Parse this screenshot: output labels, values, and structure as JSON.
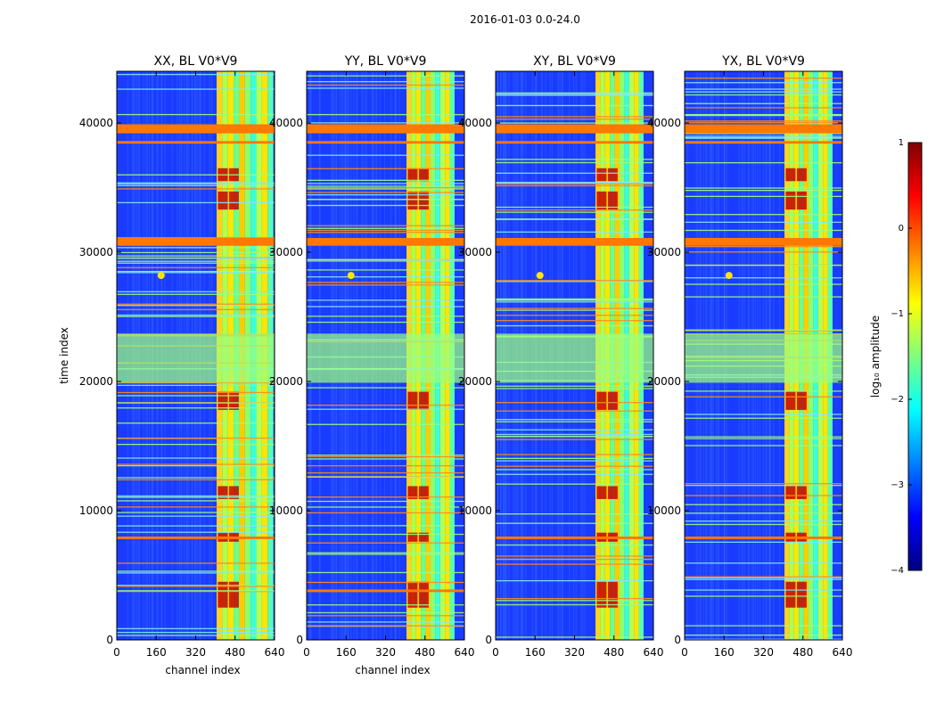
{
  "figure": {
    "suptitle": "2016-01-03 0.0-24.0"
  },
  "chart_data": [
    {
      "type": "heatmap",
      "title": "XX, BL V0*V9",
      "xlabel": "channel index",
      "ylabel": "time index",
      "xlim": [
        0,
        640
      ],
      "ylim": [
        0,
        44000
      ],
      "xticks": [
        "0",
        "160",
        "320",
        "480",
        "640"
      ],
      "yticks": [
        "0",
        "10000",
        "20000",
        "30000",
        "40000"
      ],
      "bright_channel_range": [
        405,
        635
      ],
      "flagged_time_bands": [
        [
          39200,
          39900
        ],
        [
          30500,
          31100
        ],
        [
          29900,
          30300
        ],
        [
          33500,
          33800
        ],
        [
          7800,
          8000
        ],
        [
          22000,
          23700
        ]
      ]
    },
    {
      "type": "heatmap",
      "title": "YY, BL V0*V9",
      "xlabel": "channel index",
      "ylabel": "",
      "xlim": [
        0,
        640
      ],
      "ylim": [
        0,
        44000
      ],
      "xticks": [
        "0",
        "160",
        "320",
        "480",
        "640"
      ],
      "yticks": [
        "0",
        "10000",
        "20000",
        "30000",
        "40000"
      ],
      "bright_channel_range": [
        405,
        600
      ],
      "flagged_time_bands": [
        [
          39200,
          39900
        ],
        [
          30500,
          31100
        ],
        [
          29900,
          30300
        ],
        [
          33500,
          33800
        ],
        [
          3700,
          3900
        ],
        [
          22000,
          23700
        ]
      ]
    },
    {
      "type": "heatmap",
      "title": "XY, BL V0*V9",
      "xlabel": "",
      "ylabel": "",
      "xlim": [
        0,
        640
      ],
      "ylim": [
        0,
        44000
      ],
      "xticks": [
        "0",
        "160",
        "320",
        "480",
        "640"
      ],
      "yticks": [
        "0",
        "10000",
        "20000",
        "30000",
        "40000"
      ],
      "bright_channel_range": [
        405,
        600
      ],
      "flagged_time_bands": [
        [
          39200,
          39900
        ],
        [
          30500,
          31100
        ],
        [
          29900,
          30300
        ],
        [
          33500,
          33800
        ],
        [
          7800,
          8000
        ],
        [
          22000,
          23700
        ]
      ]
    },
    {
      "type": "heatmap",
      "title": "YX, BL V0*V9",
      "xlabel": "",
      "ylabel": "",
      "xlim": [
        0,
        640
      ],
      "ylim": [
        0,
        44000
      ],
      "xticks": [
        "0",
        "160",
        "320",
        "480",
        "640"
      ],
      "yticks": [
        "0",
        "10000",
        "20000",
        "30000",
        "40000"
      ],
      "bright_channel_range": [
        405,
        600
      ],
      "flagged_time_bands": [
        [
          39200,
          39900
        ],
        [
          30500,
          31100
        ],
        [
          29900,
          30300
        ],
        [
          33500,
          33800
        ],
        [
          7800,
          8000
        ],
        [
          22000,
          23700
        ]
      ]
    }
  ],
  "colorbar": {
    "label": "log₁₀ amplitude",
    "vmin": -4,
    "vmax": 1,
    "ticks": [
      "1",
      "0",
      "−1",
      "−2",
      "−3",
      "−4"
    ],
    "colormap": [
      "#00007f",
      "#0000ff",
      "#007fff",
      "#00ffff",
      "#7fff7f",
      "#ffff00",
      "#ff7f00",
      "#ff0000",
      "#7f0000"
    ]
  }
}
